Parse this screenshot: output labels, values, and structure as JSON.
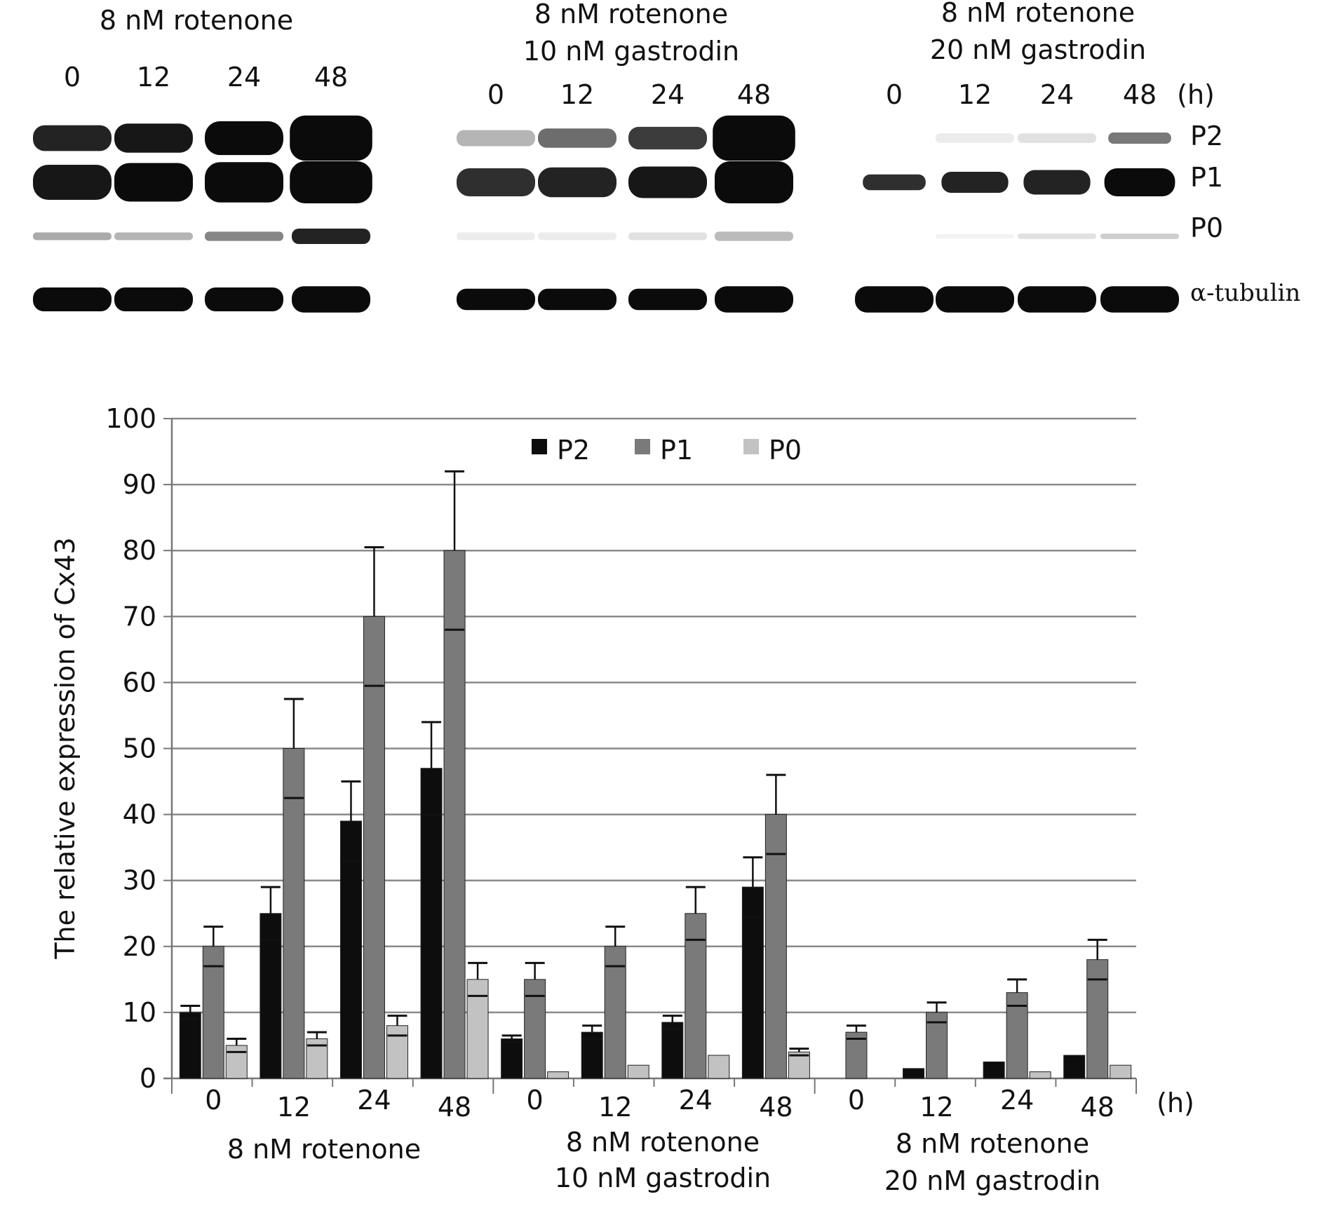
{
  "blot": {
    "panels": [
      {
        "title_lines": [
          "8 nM rotenone"
        ],
        "times": [
          "0",
          "12",
          "24",
          "48"
        ]
      },
      {
        "title_lines": [
          "8 nM rotenone",
          "10 nM gastrodin"
        ],
        "times": [
          "0",
          "12",
          "24",
          "48"
        ]
      },
      {
        "title_lines": [
          "8 nM rotenone",
          "20 nM gastrodin"
        ],
        "times": [
          "0",
          "12",
          "24",
          "48"
        ]
      }
    ],
    "unit_label": "(h)",
    "band_labels": [
      "P2",
      "P1",
      "P0",
      "α-tubulin"
    ]
  },
  "chart_data": {
    "type": "bar",
    "title": "",
    "ylabel": "The relative expression of Cx43",
    "xlabel": "(h)",
    "ylim": [
      0,
      100
    ],
    "yticks": [
      0,
      10,
      20,
      30,
      40,
      50,
      60,
      70,
      80,
      90,
      100
    ],
    "grid": true,
    "legend_position": "top-center",
    "groups": [
      {
        "label_lines": [
          "8 nM rotenone"
        ]
      },
      {
        "label_lines": [
          "8 nM rotenone",
          "10 nM gastrodin"
        ]
      },
      {
        "label_lines": [
          "8 nM rotenone",
          "20 nM gastrodin"
        ]
      }
    ],
    "categories": [
      "0",
      "12",
      "24",
      "48",
      "0",
      "12",
      "24",
      "48",
      "0",
      "12",
      "24",
      "48"
    ],
    "series": [
      {
        "name": "P2",
        "color": "#0d0d0d",
        "values": [
          10,
          25,
          39,
          47,
          6,
          7,
          8.5,
          29,
          0,
          1.5,
          2.5,
          3.5
        ],
        "errors": [
          1,
          4,
          6,
          7,
          0.5,
          1,
          1,
          4.5,
          0,
          0,
          0,
          0
        ]
      },
      {
        "name": "P1",
        "color": "#7a7a7a",
        "values": [
          20,
          50,
          70,
          80,
          15,
          20,
          25,
          40,
          7,
          10,
          13,
          18
        ],
        "errors": [
          3,
          7.5,
          10.5,
          12,
          2.5,
          3,
          4,
          6,
          1,
          1.5,
          2,
          3
        ]
      },
      {
        "name": "P0",
        "color": "#c2c2c2",
        "values": [
          5,
          6,
          8,
          15,
          1,
          2,
          3.5,
          4,
          0,
          0,
          1,
          2
        ],
        "errors": [
          1,
          1,
          1.5,
          2.5,
          0,
          0,
          0,
          0.5,
          0,
          0,
          0,
          0
        ]
      }
    ]
  }
}
